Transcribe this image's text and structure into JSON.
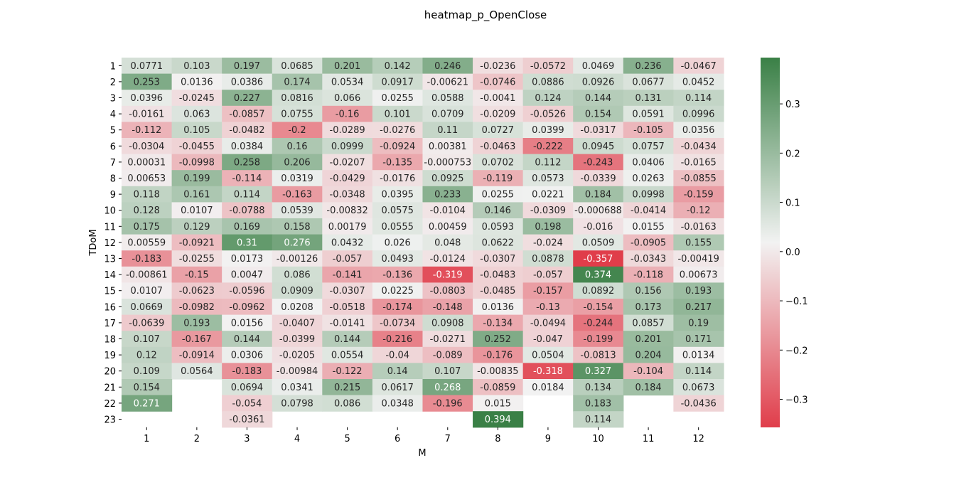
{
  "chart_data": {
    "type": "heatmap",
    "title": "heatmap_p_OpenClose",
    "xlabel": "M",
    "ylabel": "TDoM",
    "x_categories": [
      "1",
      "2",
      "3",
      "4",
      "5",
      "6",
      "7",
      "8",
      "9",
      "10",
      "11",
      "12"
    ],
    "y_categories": [
      "1",
      "2",
      "3",
      "4",
      "5",
      "6",
      "7",
      "8",
      "9",
      "10",
      "11",
      "12",
      "13",
      "14",
      "15",
      "16",
      "17",
      "18",
      "19",
      "20",
      "21",
      "22",
      "23"
    ],
    "values": [
      [
        "0.0771",
        "0.103",
        "0.197",
        "0.0685",
        "0.201",
        "0.142",
        "0.246",
        "-0.0236",
        "-0.0572",
        "0.0469",
        "0.236",
        "-0.0467"
      ],
      [
        "0.253",
        "0.0136",
        "0.0386",
        "0.174",
        "0.0534",
        "0.0917",
        "-0.00621",
        "-0.0746",
        "0.0886",
        "0.0926",
        "0.0677",
        "0.0452"
      ],
      [
        "0.0396",
        "-0.0245",
        "0.227",
        "0.0816",
        "0.066",
        "0.0255",
        "0.0588",
        "-0.0041",
        "0.124",
        "0.144",
        "0.131",
        "0.114"
      ],
      [
        "-0.0161",
        "0.063",
        "-0.0857",
        "0.0755",
        "-0.16",
        "0.101",
        "0.0709",
        "-0.0209",
        "-0.0526",
        "0.154",
        "0.0591",
        "0.0996"
      ],
      [
        "-0.112",
        "0.105",
        "-0.0482",
        "-0.2",
        "-0.0289",
        "-0.0276",
        "0.11",
        "0.0727",
        "0.0399",
        "-0.0317",
        "-0.105",
        "0.0356"
      ],
      [
        "-0.0304",
        "-0.0455",
        "0.0384",
        "0.16",
        "0.0999",
        "-0.0924",
        "0.00381",
        "-0.0463",
        "-0.222",
        "0.0945",
        "0.0757",
        "-0.0434"
      ],
      [
        "0.00031",
        "-0.0998",
        "0.258",
        "0.206",
        "-0.0207",
        "-0.135",
        "-0.000753",
        "0.0702",
        "0.112",
        "-0.243",
        "0.0406",
        "-0.0165"
      ],
      [
        "0.00653",
        "0.199",
        "-0.114",
        "0.0319",
        "-0.0429",
        "-0.0176",
        "0.0925",
        "-0.119",
        "0.0573",
        "-0.0339",
        "0.0263",
        "-0.0855"
      ],
      [
        "0.118",
        "0.161",
        "0.114",
        "-0.163",
        "-0.0348",
        "0.0395",
        "0.233",
        "0.0255",
        "0.0221",
        "0.184",
        "0.0998",
        "-0.159"
      ],
      [
        "0.128",
        "0.0107",
        "-0.0788",
        "0.0539",
        "-0.00832",
        "0.0575",
        "-0.0104",
        "0.146",
        "-0.0309",
        "-0.000688",
        "-0.0414",
        "-0.12"
      ],
      [
        "0.175",
        "0.129",
        "0.169",
        "0.158",
        "0.00179",
        "0.0555",
        "0.00459",
        "0.0593",
        "0.198",
        "-0.016",
        "0.0155",
        "-0.0163"
      ],
      [
        "0.00559",
        "-0.0921",
        "0.31",
        "0.276",
        "0.0432",
        "0.026",
        "0.048",
        "0.0622",
        "-0.024",
        "0.0509",
        "-0.0905",
        "0.155"
      ],
      [
        "-0.183",
        "-0.0255",
        "0.0173",
        "-0.00126",
        "-0.057",
        "0.0493",
        "-0.0124",
        "-0.0307",
        "0.0878",
        "-0.357",
        "-0.0343",
        "-0.00419"
      ],
      [
        "-0.00861",
        "-0.15",
        "0.0047",
        "0.086",
        "-0.141",
        "-0.136",
        "-0.319",
        "-0.0483",
        "-0.057",
        "0.374",
        "-0.118",
        "0.00673"
      ],
      [
        "0.0107",
        "-0.0623",
        "-0.0596",
        "0.0909",
        "-0.0307",
        "0.0225",
        "-0.0803",
        "-0.0485",
        "-0.157",
        "0.0892",
        "0.156",
        "0.193"
      ],
      [
        "0.0669",
        "-0.0982",
        "-0.0962",
        "0.0208",
        "-0.0518",
        "-0.174",
        "-0.148",
        "0.0136",
        "-0.13",
        "-0.154",
        "0.173",
        "0.217"
      ],
      [
        "-0.0639",
        "0.193",
        "0.0156",
        "-0.0407",
        "-0.0141",
        "-0.0734",
        "0.0908",
        "-0.134",
        "-0.0494",
        "-0.244",
        "0.0857",
        "0.19"
      ],
      [
        "0.107",
        "-0.167",
        "0.144",
        "-0.0399",
        "0.144",
        "-0.216",
        "-0.0271",
        "0.252",
        "-0.047",
        "-0.199",
        "0.201",
        "0.171"
      ],
      [
        "0.12",
        "-0.0914",
        "0.0306",
        "-0.0205",
        "0.0554",
        "-0.04",
        "-0.089",
        "-0.176",
        "0.0504",
        "-0.0813",
        "0.204",
        "0.0134"
      ],
      [
        "0.109",
        "0.0564",
        "-0.183",
        "-0.00984",
        "-0.122",
        "0.14",
        "0.107",
        "-0.00835",
        "-0.318",
        "0.327",
        "-0.104",
        "0.114"
      ],
      [
        "0.154",
        null,
        "0.0694",
        "0.0341",
        "0.215",
        "0.0617",
        "0.268",
        "-0.0859",
        "0.0184",
        "0.134",
        "0.184",
        "0.0673"
      ],
      [
        "0.271",
        null,
        "-0.054",
        "0.0798",
        "0.086",
        "0.0348",
        "-0.196",
        "0.015",
        null,
        "0.183",
        null,
        "-0.0436"
      ],
      [
        null,
        null,
        "-0.0361",
        null,
        null,
        null,
        null,
        "0.394",
        null,
        "0.114",
        null,
        null
      ]
    ],
    "vmin": -0.357,
    "vmax": 0.394,
    "colorbar_ticks": [
      0.3,
      0.2,
      0.1,
      0.0,
      -0.1,
      -0.2,
      -0.3
    ],
    "colorbar_tick_labels": [
      "0.3",
      "0.2",
      "0.1",
      "0.0",
      "−0.1",
      "−0.2",
      "−0.3"
    ],
    "colors": {
      "negative": "#e03d4a",
      "center": "#f2f2f2",
      "positive": "#3a8046"
    },
    "grid": false
  }
}
